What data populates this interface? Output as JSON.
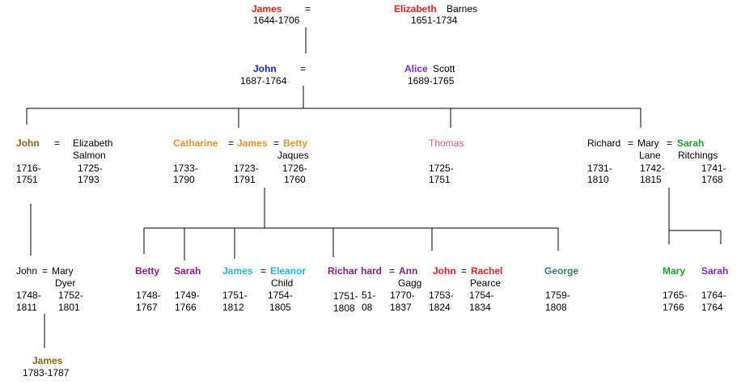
{
  "colors": {
    "red": "#e8201f",
    "blue": "#1a22c8",
    "purple": "#7a29d6",
    "olive": "#8a6512",
    "orange": "#f39222",
    "pink": "#f0508a",
    "green": "#18a02a",
    "cyan": "#20b8e0",
    "magenta": "#8e1a86",
    "teal": "#2e7e6e",
    "line": "#000000"
  },
  "gen1": {
    "james": {
      "name": "James",
      "dates": "1644-1706"
    },
    "eq": "=",
    "elizabeth": {
      "given": "Elizabeth",
      "surname": "Barnes",
      "dates": "1651-1734"
    }
  },
  "gen2": {
    "john": {
      "name": "John",
      "dates": "1687-1764"
    },
    "eq": "=",
    "alice": {
      "given": "Alice",
      "surname": "Scott",
      "dates": "1689-1765"
    }
  },
  "gen3": {
    "john": {
      "name": "John",
      "born": "1716-",
      "died": "1751"
    },
    "john_eq": "=",
    "elizabeth_salmon": {
      "given": "Elizabeth",
      "surname": "Salmon",
      "born": "1725-",
      "died": "1793"
    },
    "catharine": {
      "name": "Catharine",
      "born": "1733-",
      "died": "1790"
    },
    "james": {
      "name": "James",
      "born": "1723-",
      "died": "1791"
    },
    "betty": {
      "name": "Betty",
      "surname": "Jaques",
      "born": "1726-",
      "died": "1760"
    },
    "eq": "=",
    "thomas": {
      "name": "Thomas",
      "born": "1725-",
      "died": "1751"
    },
    "richard": {
      "name": "Richard",
      "born": "1731-",
      "died": "1810"
    },
    "mary_lane": {
      "given": "Mary",
      "surname": "Lane",
      "born": "1742-",
      "died": "1815"
    },
    "sarah": {
      "name": "Sarah",
      "surname": "Ritchings",
      "born": "1741-",
      "died": "1768"
    }
  },
  "gen4": {
    "john": {
      "name": "John",
      "born": "1748-",
      "died": "1811"
    },
    "mary_dyer": {
      "given": "Mary",
      "surname": "Dyer",
      "born": "1752-",
      "died": "1801"
    },
    "betty": {
      "name": "Betty",
      "born": "1748-",
      "died": "1767"
    },
    "sarah": {
      "name": "Sarah",
      "born": "1749-",
      "died": "1766"
    },
    "james": {
      "name": "James",
      "born": "1751-",
      "died": "1812"
    },
    "eleanor": {
      "name": "Eleanor",
      "surname": "Child",
      "born": "1754-",
      "died": "1805"
    },
    "richard": {
      "name": "Richar",
      "born": "1751-",
      "died": "1808"
    },
    "overlap": {
      "name": "hard",
      "born": "51-",
      "died": "08"
    },
    "ann": {
      "name": "Ann",
      "surname": "Gagg",
      "born": "1770-",
      "died": "1837"
    },
    "john2": {
      "name": "John",
      "born": "1753-",
      "died": "1824"
    },
    "rachel": {
      "name": "Rachel",
      "surname": "Pearce",
      "born": "1754-",
      "died": "1834"
    },
    "george": {
      "name": "George",
      "born": "1759-",
      "died": "1808"
    },
    "mary": {
      "name": "Mary",
      "born": "1765-",
      "died": "1766"
    },
    "sarah2": {
      "name": "Sarah",
      "born": "1764-",
      "died": "1764"
    },
    "eq": "="
  },
  "gen5": {
    "james": {
      "name": "James",
      "dates": "1783-1787"
    }
  }
}
